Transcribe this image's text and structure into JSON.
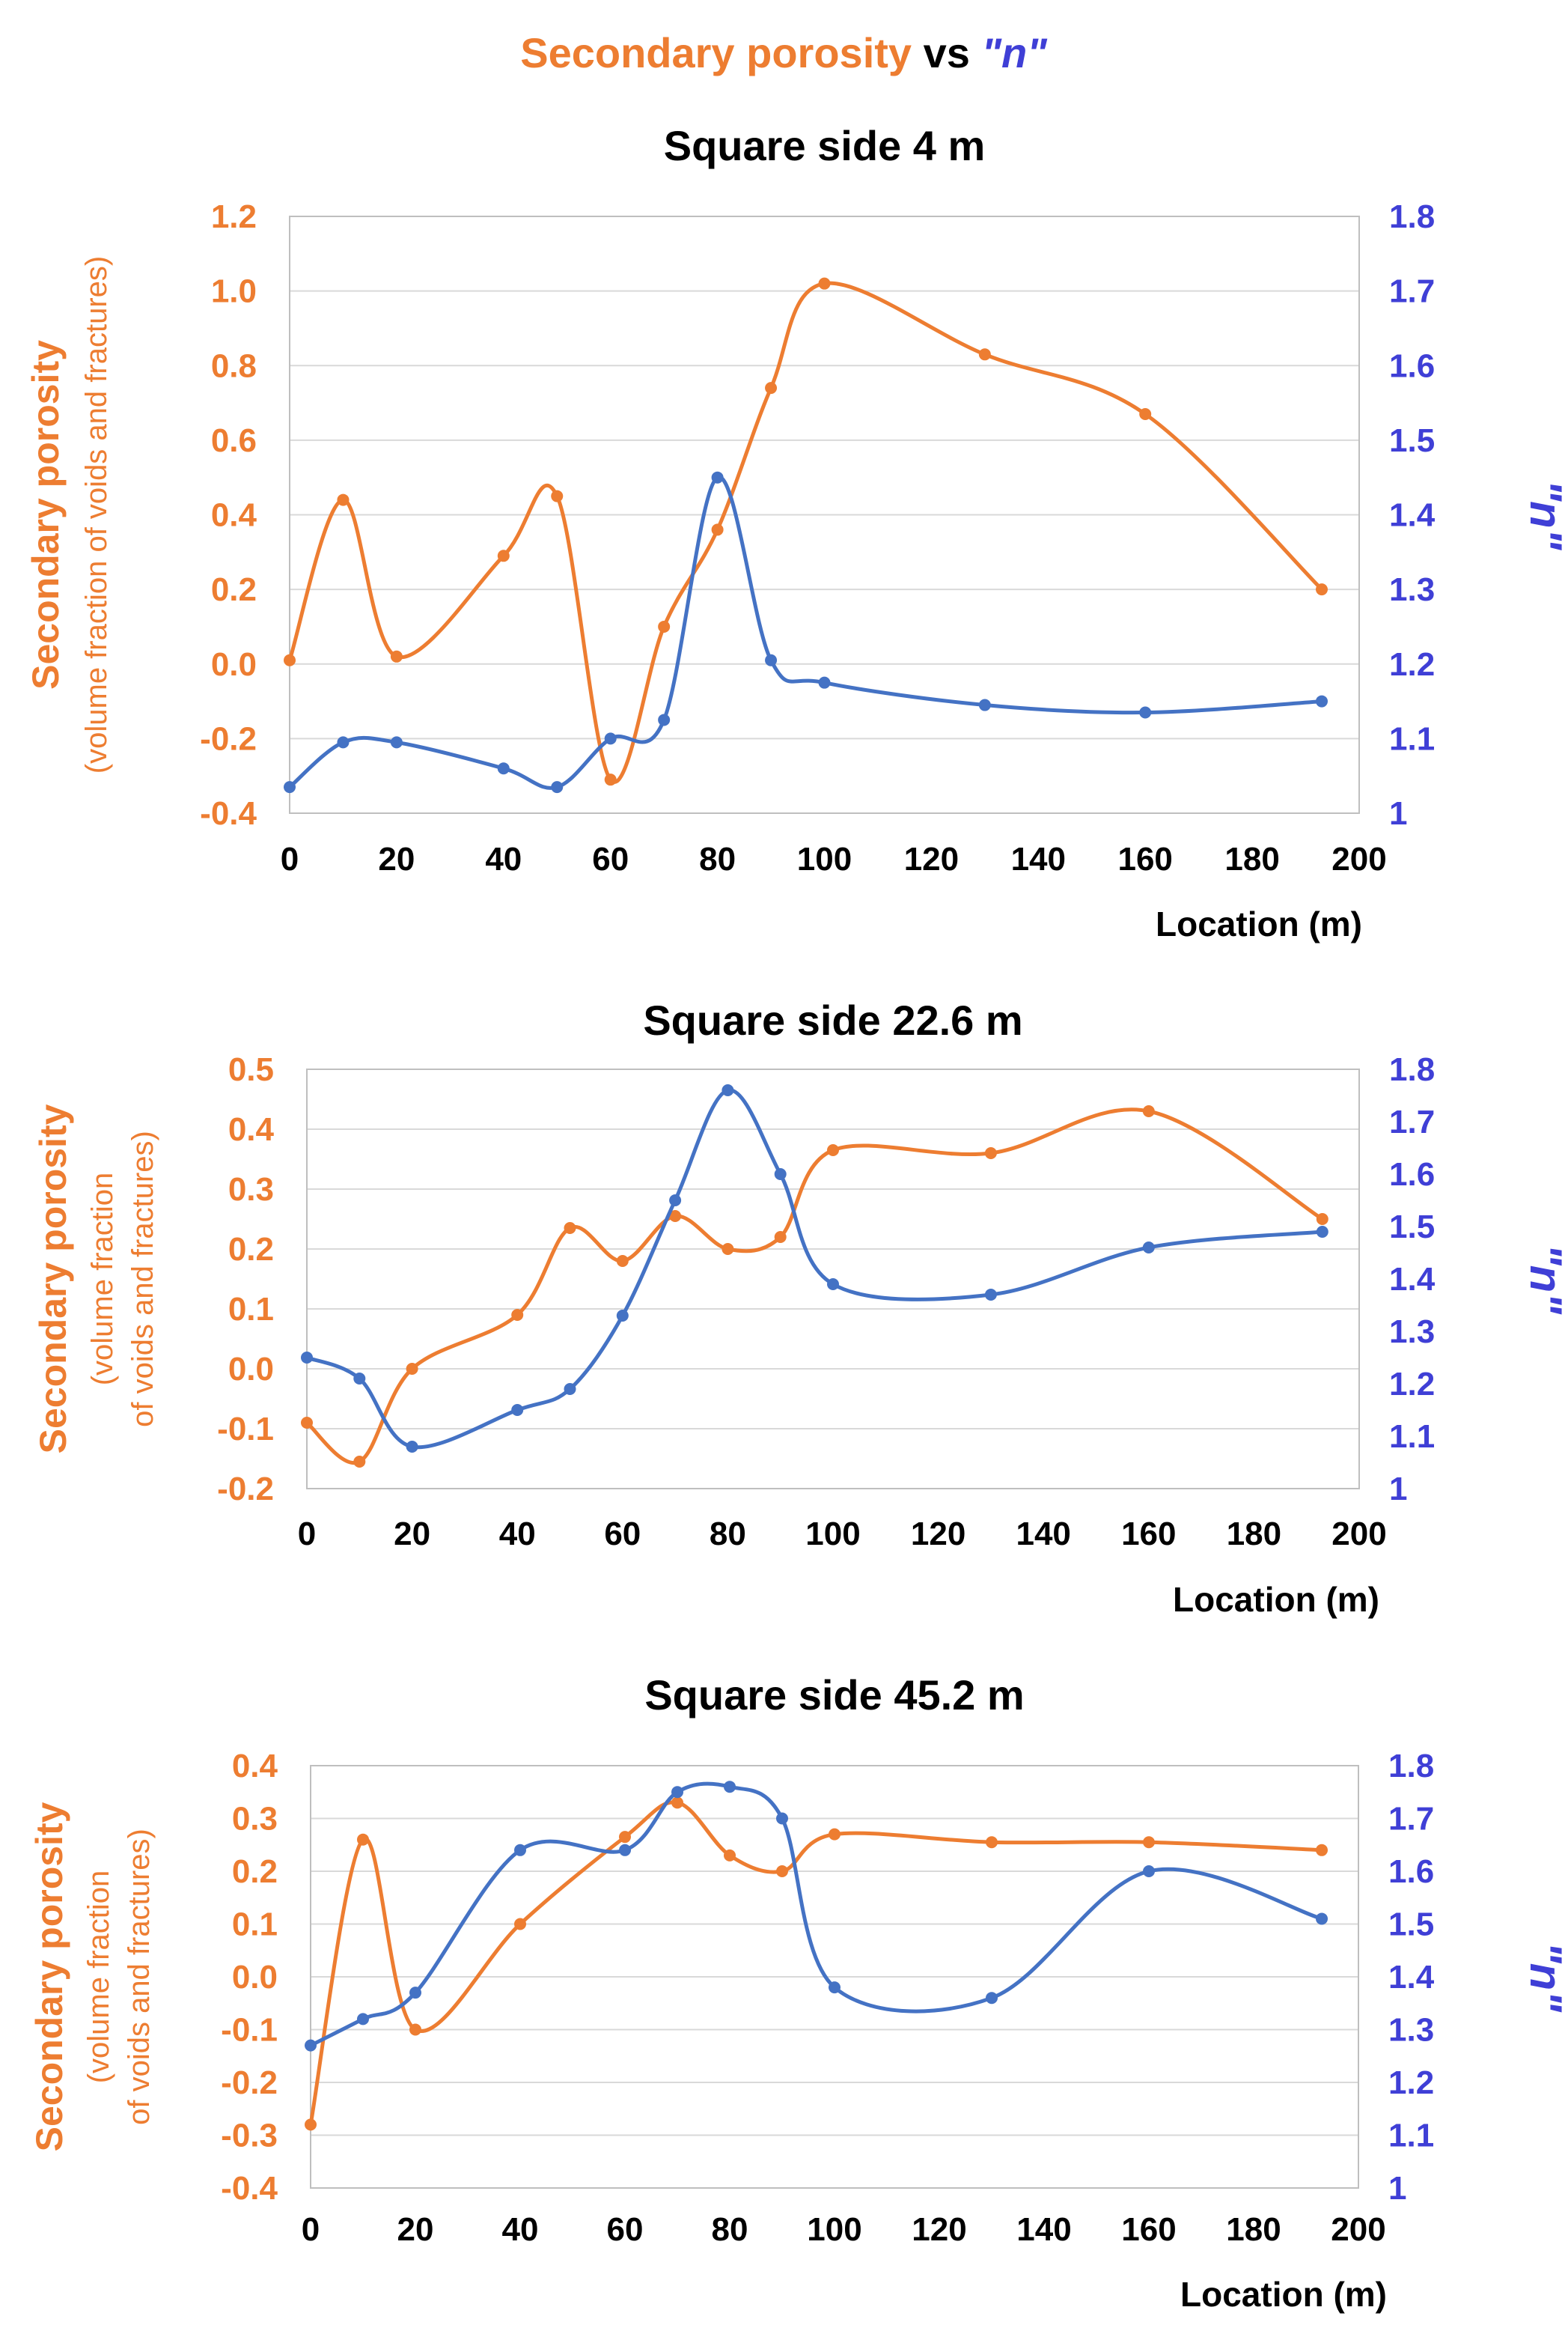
{
  "header": {
    "prefix": "Secondary porosity",
    "mid": " vs ",
    "suffix": "\"n\""
  },
  "colors": {
    "porosity": "#ED7D31",
    "n": "#4472C4",
    "n_text": "#3F3FD6",
    "grid": "#D9D9D9",
    "frame": "#BFBFBF",
    "text": "#000000"
  },
  "chart_data": [
    {
      "type": "line",
      "title": "Square side 4 m",
      "xlabel": "Location (m)",
      "ylabel": "Secondary porosity",
      "ylabel_sub": [
        "(volume fraction of voids and fractures)"
      ],
      "y2label": "\"n\"",
      "xlim": [
        0,
        200
      ],
      "xticks": [
        0,
        20,
        40,
        60,
        80,
        100,
        120,
        140,
        160,
        180,
        200
      ],
      "ylim": [
        -0.4,
        1.2
      ],
      "yticks": [
        -0.4,
        -0.2,
        0.0,
        0.2,
        0.4,
        0.6,
        0.8,
        1.0,
        1.2
      ],
      "ytick_labels": [
        "-0.4",
        "-0.2",
        "0.0",
        "0.2",
        "0.4",
        "0.6",
        "0.8",
        "1.0",
        "1.2"
      ],
      "y2lim": [
        1.0,
        1.8
      ],
      "y2ticks": [
        1.0,
        1.1,
        1.2,
        1.3,
        1.4,
        1.5,
        1.6,
        1.7,
        1.8
      ],
      "y2tick_labels": [
        "1",
        "1.1",
        "1.2",
        "1.3",
        "1.4",
        "1.5",
        "1.6",
        "1.7",
        "1.8"
      ],
      "series": [
        {
          "name": "Secondary porosity",
          "axis": "left",
          "x": [
            0,
            10,
            20,
            40,
            50,
            60,
            70,
            80,
            90,
            100,
            130,
            160,
            193
          ],
          "values": [
            0.01,
            0.44,
            0.02,
            0.29,
            0.45,
            -0.31,
            0.1,
            0.36,
            0.74,
            1.02,
            0.83,
            0.67,
            0.2
          ]
        },
        {
          "name": "n",
          "axis": "right",
          "x": [
            0,
            10,
            20,
            40,
            50,
            60,
            70,
            80,
            90,
            100,
            130,
            160,
            193
          ],
          "values": [
            1.035,
            1.095,
            1.095,
            1.06,
            1.035,
            1.1,
            1.125,
            1.45,
            1.205,
            1.175,
            1.145,
            1.135,
            1.15
          ]
        }
      ]
    },
    {
      "type": "line",
      "title": "Square side 22.6 m",
      "xlabel": "Location (m)",
      "ylabel": "Secondary porosity",
      "ylabel_sub": [
        "(volume fraction",
        "of voids and fractures)"
      ],
      "y2label": "\"n\"",
      "xlim": [
        0,
        200
      ],
      "xticks": [
        0,
        20,
        40,
        60,
        80,
        100,
        120,
        140,
        160,
        180,
        200
      ],
      "ylim": [
        -0.2,
        0.5
      ],
      "yticks": [
        -0.2,
        -0.1,
        0.0,
        0.1,
        0.2,
        0.3,
        0.4,
        0.5
      ],
      "ytick_labels": [
        "-0.2",
        "-0.1",
        "0.0",
        "0.1",
        "0.2",
        "0.3",
        "0.4",
        "0.5"
      ],
      "y2lim": [
        1.0,
        1.8
      ],
      "y2ticks": [
        1.0,
        1.1,
        1.2,
        1.3,
        1.4,
        1.5,
        1.6,
        1.7,
        1.8
      ],
      "y2tick_labels": [
        "1",
        "1.1",
        "1.2",
        "1.3",
        "1.4",
        "1.5",
        "1.6",
        "1.7",
        "1.8"
      ],
      "series": [
        {
          "name": "Secondary porosity",
          "axis": "left",
          "x": [
            0,
            10,
            20,
            40,
            50,
            60,
            70,
            80,
            90,
            100,
            130,
            160,
            193
          ],
          "values": [
            -0.09,
            -0.155,
            0.0,
            0.09,
            0.235,
            0.18,
            0.255,
            0.2,
            0.22,
            0.365,
            0.36,
            0.43,
            0.25
          ]
        },
        {
          "name": "n",
          "axis": "right",
          "x": [
            0,
            10,
            20,
            40,
            50,
            60,
            70,
            80,
            90,
            100,
            130,
            160,
            193
          ],
          "values": [
            1.25,
            1.21,
            1.08,
            1.15,
            1.19,
            1.33,
            1.55,
            1.76,
            1.6,
            1.39,
            1.37,
            1.46,
            1.49
          ]
        }
      ]
    },
    {
      "type": "line",
      "title": "Square side 45.2 m",
      "xlabel": "Location (m)",
      "ylabel": "Secondary porosity",
      "ylabel_sub": [
        "(volume fraction",
        "of voids and fractures)"
      ],
      "y2label": "\"n\"",
      "xlim": [
        0,
        200
      ],
      "xticks": [
        0,
        20,
        40,
        60,
        80,
        100,
        120,
        140,
        160,
        180,
        200
      ],
      "ylim": [
        -0.4,
        0.4
      ],
      "yticks": [
        -0.4,
        -0.3,
        -0.2,
        -0.1,
        0.0,
        0.1,
        0.2,
        0.3,
        0.4
      ],
      "ytick_labels": [
        "-0.4",
        "-0.3",
        "-0.2",
        "-0.1",
        "0.0",
        "0.1",
        "0.2",
        "0.3",
        "0.4"
      ],
      "y2lim": [
        1.0,
        1.8
      ],
      "y2ticks": [
        1.0,
        1.1,
        1.2,
        1.3,
        1.4,
        1.5,
        1.6,
        1.7,
        1.8
      ],
      "y2tick_labels": [
        "1",
        "1.1",
        "1.2",
        "1.3",
        "1.4",
        "1.5",
        "1.6",
        "1.7",
        "1.8"
      ],
      "series": [
        {
          "name": "Secondary porosity",
          "axis": "left",
          "x": [
            0,
            10,
            20,
            40,
            60,
            70,
            80,
            90,
            100,
            130,
            160,
            193
          ],
          "values": [
            -0.28,
            0.26,
            -0.1,
            0.1,
            0.265,
            0.33,
            0.23,
            0.2,
            0.27,
            0.255,
            0.255,
            0.24
          ]
        },
        {
          "name": "n",
          "axis": "right",
          "x": [
            0,
            10,
            20,
            40,
            60,
            70,
            80,
            90,
            100,
            130,
            160,
            193
          ],
          "values": [
            1.27,
            1.32,
            1.37,
            1.64,
            1.64,
            1.75,
            1.76,
            1.7,
            1.38,
            1.36,
            1.6,
            1.51
          ]
        }
      ]
    }
  ]
}
